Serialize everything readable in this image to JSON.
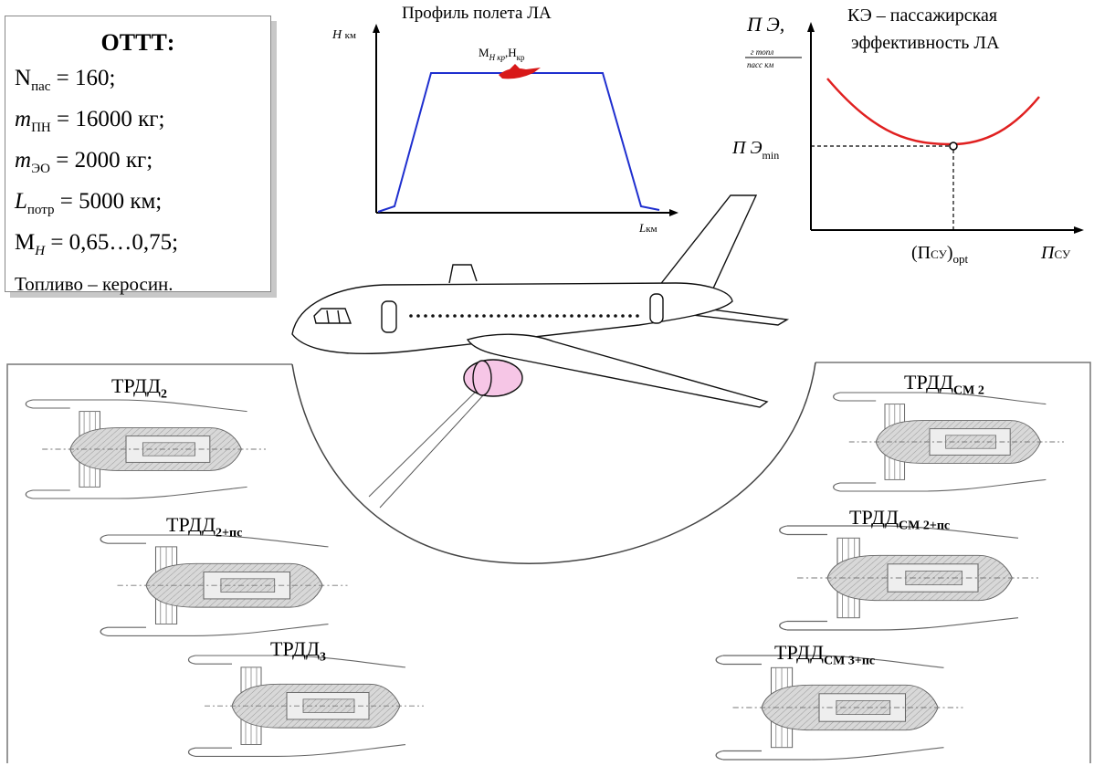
{
  "requirements": {
    "title": "ОТТТ:",
    "n_pax": {
      "sym": "N",
      "sub": "пас",
      "value": "= 160;"
    },
    "m_pn": {
      "sym": "m",
      "sub": "ПН",
      "value": "= 16000 кг;"
    },
    "m_eo": {
      "sym": "m",
      "sub": "ЭО",
      "value": "= 2000 кг;"
    },
    "l_potr": {
      "sym": "L",
      "sub": "потр",
      "value": "= 5000 км;"
    },
    "mach": {
      "sym": "M",
      "sub": "H",
      "value": "= 0,65…0,75;"
    },
    "fuel": "Топливо – керосин."
  },
  "flight_profile": {
    "title": "Профиль полета ЛА",
    "y_axis_label": "H",
    "y_axis_unit": "км",
    "x_axis_label": "L",
    "x_axis_unit": "км",
    "cruise_label": "M",
    "cruise_label_sub": "H кр",
    "cruise_label_mid": ",H",
    "cruise_label_sub2": "кр",
    "line_color": "#1f2fcf",
    "aircraft_color": "#d81818"
  },
  "efficiency_chart": {
    "title_line1": "КЭ – пассажирская",
    "title_line2": "эффективность ЛА",
    "y_axis_label": "П Э,",
    "y_axis_unit_num": "г топл",
    "y_axis_unit_den": "пасс км",
    "y_min_label": "П Э",
    "y_min_sub": "min",
    "x_opt_label": "(П",
    "x_opt_label_sub": "СУ",
    "x_opt_label_tail": ")",
    "x_opt_label_sub2": "opt",
    "x_axis_label": "П",
    "x_axis_sub": "СУ",
    "curve_color": "#e02020"
  },
  "aircraft": {
    "engine_nacelle_color": "#f6c6e6"
  },
  "engines": {
    "trdd2": {
      "name": "ТРДД",
      "sub": "2"
    },
    "trdd2_ps": {
      "name": "ТРДД",
      "sub": "2+пс"
    },
    "trdd3": {
      "name": "ТРДД",
      "sub": "3"
    },
    "trdd_sm2": {
      "name": "ТРДД",
      "sub": "СМ 2"
    },
    "trdd_sm2_ps": {
      "name": "ТРДД",
      "sub": "СМ 2+пс"
    },
    "trdd_sm3_ps": {
      "name": "ТРДД",
      "sub": "СМ 3+пс"
    }
  }
}
